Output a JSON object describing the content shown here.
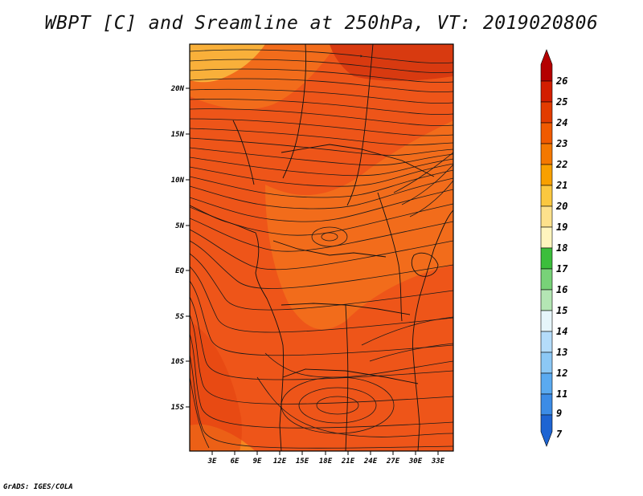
{
  "title": "WBPT [C] and Sreamline at 250hPa, VT: 2019020806",
  "credit": "GrADS: IGES/COLA",
  "lon_labels": [
    "3E",
    "6E",
    "9E",
    "12E",
    "15E",
    "18E",
    "21E",
    "24E",
    "27E",
    "30E",
    "33E"
  ],
  "lat_labels": [
    "20N",
    "15N",
    "10N",
    "5N",
    "EQ",
    "5S",
    "10S",
    "15S"
  ],
  "colorbar": {
    "labels": [
      "26",
      "25",
      "24",
      "23",
      "22",
      "21",
      "20",
      "19",
      "18",
      "17",
      "16",
      "15",
      "14",
      "13",
      "12",
      "11",
      "9",
      "7"
    ],
    "colors": [
      "#b40000",
      "#d21e00",
      "#e23c00",
      "#f05a00",
      "#f47800",
      "#f8a000",
      "#fbc840",
      "#fde18c",
      "#fff5be",
      "#3cbe3c",
      "#78d278",
      "#b4e6b4",
      "#e6f5fa",
      "#b4dcfa",
      "#8cc8f5",
      "#5aaaf0",
      "#3c8ce6",
      "#1e64d2"
    ]
  },
  "map_colors": {
    "base": "#ee5519",
    "warm": "#f26c1b",
    "warmer": "#f6851f",
    "hot": "#d83a10",
    "cool": "#f9b03a"
  }
}
